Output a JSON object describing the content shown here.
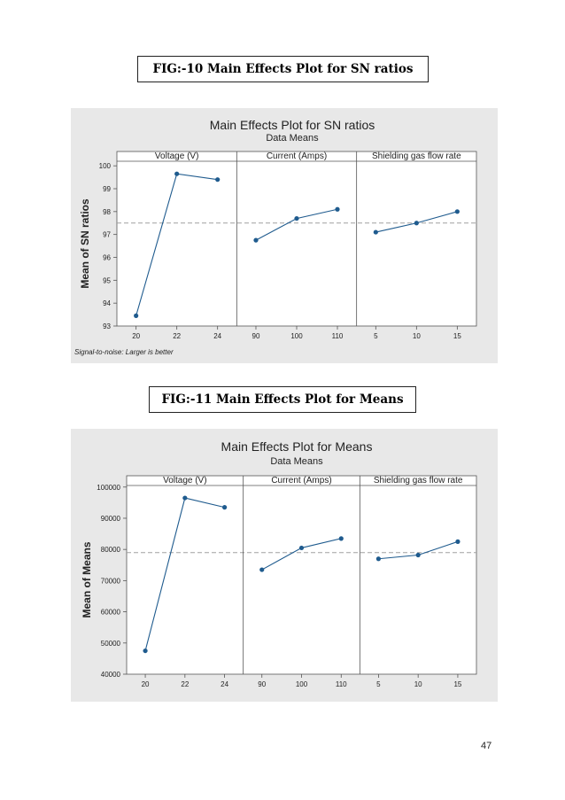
{
  "captions": {
    "fig10": "FIG:-10 Main Effects Plot for SN ratios",
    "fig11": "FIG:-11 Main Effects Plot for Means"
  },
  "page_number": "47",
  "colors": {
    "series": "#1f5b8e",
    "panel_bg": "#ffffff",
    "figure_bg": "#e8e8e8",
    "reference_line": "#a0a0a0"
  },
  "chart_data": [
    {
      "type": "line",
      "title": "Main Effects Plot for SN ratios",
      "subtitle": "Data Means",
      "ylabel": "Mean of SN ratios",
      "footnote": "Signal-to-noise: Larger is better",
      "ylim": [
        93,
        100.2
      ],
      "yticks": [
        "93",
        "94",
        "95",
        "96",
        "97",
        "98",
        "99",
        "100"
      ],
      "reference_line": 97.5,
      "grid": false,
      "panels": [
        {
          "title": "Voltage (V)",
          "categories": [
            "20",
            "22",
            "24"
          ],
          "values": [
            93.45,
            99.65,
            99.4
          ]
        },
        {
          "title": "Current (Amps)",
          "categories": [
            "90",
            "100",
            "110"
          ],
          "values": [
            96.75,
            97.7,
            98.1
          ]
        },
        {
          "title": "Shielding gas flow rate",
          "categories": [
            "5",
            "10",
            "15"
          ],
          "values": [
            97.1,
            97.5,
            98.0
          ]
        }
      ]
    },
    {
      "type": "line",
      "title": "Main Effects Plot for Means",
      "subtitle": "Data Means",
      "ylabel": "Mean of Means",
      "ylim": [
        40000,
        100500
      ],
      "yticks": [
        "40000",
        "50000",
        "60000",
        "70000",
        "80000",
        "90000",
        "100000"
      ],
      "reference_line": 79000,
      "grid": false,
      "panels": [
        {
          "title": "Voltage (V)",
          "categories": [
            "20",
            "22",
            "24"
          ],
          "values": [
            47500,
            96500,
            93500
          ]
        },
        {
          "title": "Current (Amps)",
          "categories": [
            "90",
            "100",
            "110"
          ],
          "values": [
            73500,
            80500,
            83500
          ]
        },
        {
          "title": "Shielding gas flow rate",
          "categories": [
            "5",
            "10",
            "15"
          ],
          "values": [
            77000,
            78200,
            82500
          ]
        }
      ]
    }
  ]
}
